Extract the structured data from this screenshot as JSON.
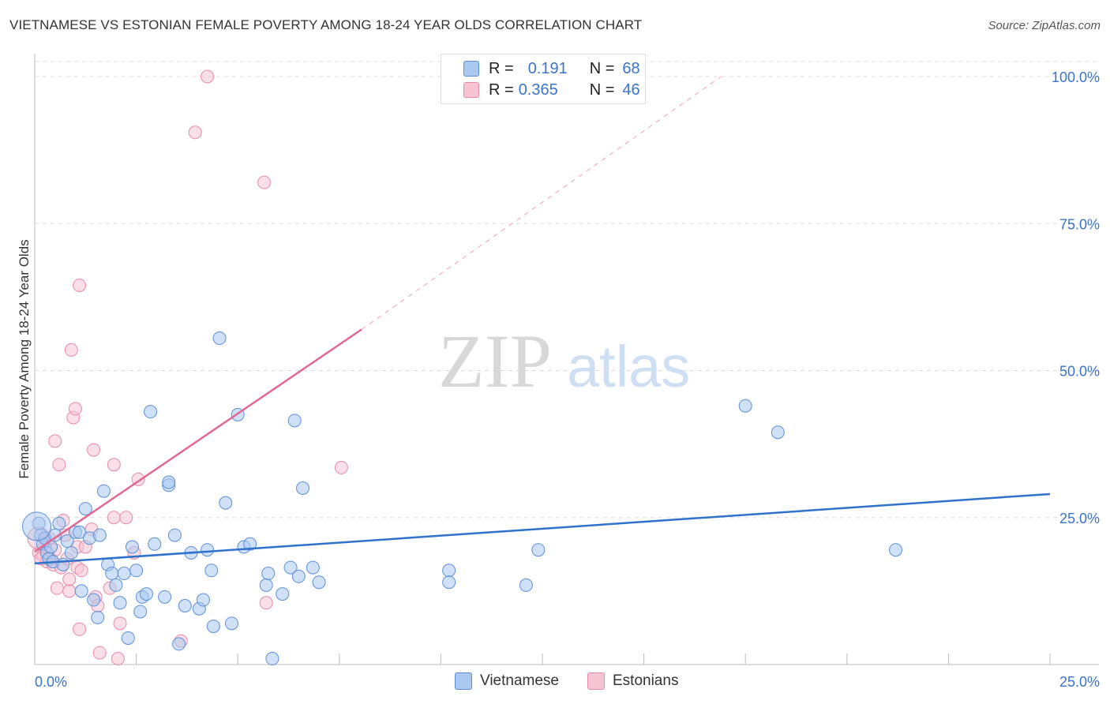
{
  "title": "VIETNAMESE VS ESTONIAN FEMALE POVERTY AMONG 18-24 YEAR OLDS CORRELATION CHART",
  "source": "Source: ZipAtlas.com",
  "watermark": {
    "zip": "ZIP",
    "atlas": "atlas"
  },
  "legend": {
    "rows": [
      {
        "r_label": "R =",
        "r_value": "0.191",
        "n_label": "N =",
        "n_value": "68"
      },
      {
        "r_label": "R =",
        "r_value": "0.365",
        "n_label": "N =",
        "n_value": "46"
      }
    ]
  },
  "bottom_legend": {
    "vietnamese": "Vietnamese",
    "estonians": "Estonians"
  },
  "colors": {
    "blue_fill": "#aac8f0",
    "blue_stroke": "#5a8fd6",
    "blue_line": "#2f72cc",
    "pink_fill": "#f7c4d4",
    "pink_stroke": "#e68aa8",
    "pink_line": "#e06892",
    "axis_text": "#3b73c8",
    "grid": "#dddddd"
  },
  "chart_data": {
    "type": "scatter",
    "title": "VIETNAMESE VS ESTONIAN FEMALE POVERTY AMONG 18-24 YEAR OLDS CORRELATION CHART",
    "xlabel": "",
    "ylabel": "Female Poverty Among 18-24 Year Olds",
    "xlim": [
      0,
      25
    ],
    "ylim": [
      0,
      102
    ],
    "x_tick_labels": [
      "0.0%",
      "25.0%"
    ],
    "y_ticks": [
      25,
      50,
      75,
      100
    ],
    "y_tick_labels": [
      "25.0%",
      "50.0%",
      "75.0%",
      "100.0%"
    ],
    "grid": true,
    "series": [
      {
        "name": "Vietnamese",
        "r": 0.191,
        "n": 68,
        "trend": {
          "x": [
            0,
            25
          ],
          "y": [
            17.2,
            29.0
          ],
          "dashed_extension": false
        },
        "points": [
          [
            0.1,
            24.0
          ],
          [
            0.15,
            22.0
          ],
          [
            0.2,
            20.5
          ],
          [
            0.25,
            21.5
          ],
          [
            0.3,
            19.0
          ],
          [
            0.35,
            18.0
          ],
          [
            0.4,
            20.0
          ],
          [
            0.45,
            17.5
          ],
          [
            0.5,
            22.0
          ],
          [
            0.6,
            24.0
          ],
          [
            0.7,
            17.0
          ],
          [
            0.8,
            21.0
          ],
          [
            0.9,
            19.0
          ],
          [
            1.0,
            22.5
          ],
          [
            1.1,
            22.5
          ],
          [
            1.15,
            12.5
          ],
          [
            1.25,
            26.5
          ],
          [
            1.35,
            21.5
          ],
          [
            1.45,
            11.0
          ],
          [
            1.55,
            8.0
          ],
          [
            1.6,
            22.0
          ],
          [
            1.7,
            29.5
          ],
          [
            1.8,
            17.0
          ],
          [
            1.9,
            15.5
          ],
          [
            2.0,
            13.5
          ],
          [
            2.1,
            10.5
          ],
          [
            2.2,
            15.5
          ],
          [
            2.3,
            4.5
          ],
          [
            2.4,
            20.0
          ],
          [
            2.5,
            16.0
          ],
          [
            2.6,
            9.0
          ],
          [
            2.65,
            11.5
          ],
          [
            2.75,
            12.0
          ],
          [
            2.85,
            43.0
          ],
          [
            2.95,
            20.5
          ],
          [
            3.2,
            11.5
          ],
          [
            3.3,
            30.5
          ],
          [
            3.3,
            31.0
          ],
          [
            3.45,
            22.0
          ],
          [
            3.55,
            3.5
          ],
          [
            3.7,
            10.0
          ],
          [
            3.85,
            19.0
          ],
          [
            4.05,
            9.5
          ],
          [
            4.15,
            11.0
          ],
          [
            4.25,
            19.5
          ],
          [
            4.35,
            16.0
          ],
          [
            4.4,
            6.5
          ],
          [
            4.55,
            55.5
          ],
          [
            4.7,
            27.5
          ],
          [
            4.85,
            7.0
          ],
          [
            5.0,
            42.5
          ],
          [
            5.15,
            20.0
          ],
          [
            5.3,
            20.5
          ],
          [
            5.7,
            13.5
          ],
          [
            5.75,
            15.5
          ],
          [
            5.85,
            1.0
          ],
          [
            6.1,
            12.0
          ],
          [
            6.3,
            16.5
          ],
          [
            6.4,
            41.5
          ],
          [
            6.5,
            15.0
          ],
          [
            6.6,
            30.0
          ],
          [
            6.85,
            16.5
          ],
          [
            7.0,
            14.0
          ],
          [
            10.2,
            16.0
          ],
          [
            10.2,
            14.0
          ],
          [
            12.1,
            13.5
          ],
          [
            12.4,
            19.5
          ],
          [
            17.5,
            44.0
          ],
          [
            18.3,
            39.5
          ],
          [
            21.2,
            19.5
          ]
        ]
      },
      {
        "name": "Estonians",
        "r": 0.365,
        "n": 46,
        "trend": {
          "x": [
            0,
            8.05
          ],
          "y": [
            19.2,
            57.0
          ],
          "dashed_extension": true,
          "dashed_to": {
            "x": 16.9,
            "y": 100
          }
        },
        "points": [
          [
            0.1,
            19.0
          ],
          [
            0.2,
            18.5
          ],
          [
            0.3,
            17.5
          ],
          [
            0.4,
            18.0
          ],
          [
            0.45,
            17.0
          ],
          [
            0.5,
            19.5
          ],
          [
            0.5,
            38.0
          ],
          [
            0.55,
            13.0
          ],
          [
            0.6,
            34.0
          ],
          [
            0.65,
            16.5
          ],
          [
            0.7,
            24.5
          ],
          [
            0.75,
            22.0
          ],
          [
            0.8,
            18.0
          ],
          [
            0.85,
            12.5
          ],
          [
            0.85,
            14.5
          ],
          [
            0.9,
            53.5
          ],
          [
            0.95,
            42.0
          ],
          [
            1.0,
            43.5
          ],
          [
            1.05,
            20.0
          ],
          [
            1.1,
            6.0
          ],
          [
            1.05,
            16.5
          ],
          [
            1.1,
            64.5
          ],
          [
            1.15,
            16.0
          ],
          [
            1.25,
            20.0
          ],
          [
            1.4,
            23.0
          ],
          [
            1.45,
            36.5
          ],
          [
            1.5,
            11.5
          ],
          [
            1.55,
            10.0
          ],
          [
            1.6,
            2.0
          ],
          [
            1.85,
            13.0
          ],
          [
            1.95,
            34.0
          ],
          [
            1.95,
            25.0
          ],
          [
            2.05,
            1.0
          ],
          [
            2.1,
            7.0
          ],
          [
            2.25,
            25.0
          ],
          [
            2.45,
            19.0
          ],
          [
            2.55,
            31.5
          ],
          [
            3.6,
            4.0
          ],
          [
            3.95,
            90.5
          ],
          [
            4.25,
            100.0
          ],
          [
            5.65,
            82.0
          ],
          [
            5.7,
            10.5
          ],
          [
            7.55,
            33.5
          ],
          [
            0.35,
            21.5
          ],
          [
            0.25,
            20.0
          ],
          [
            0.15,
            18.0
          ]
        ]
      }
    ]
  }
}
